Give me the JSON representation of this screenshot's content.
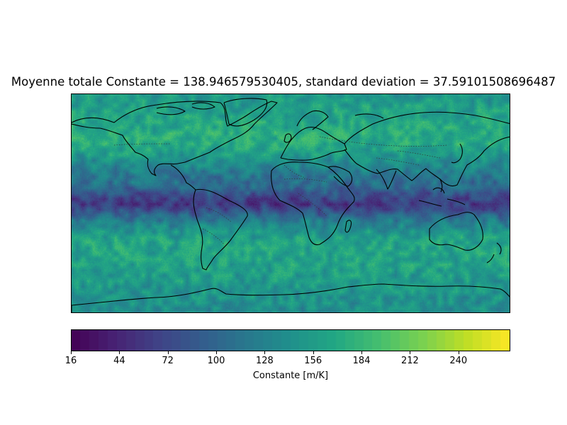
{
  "figure": {
    "title": "Moyenne totale Constante = 138.946579530405, standard deviation = 37.59101508696487",
    "projection": "PlateCarree",
    "features": [
      "coastlines",
      "borders"
    ]
  },
  "colorbar": {
    "label": "Constante [m/K]",
    "colormap": "viridis",
    "vmin": 16,
    "vmax": 270,
    "ticks": [
      "16",
      "44",
      "72",
      "100",
      "128",
      "156",
      "184",
      "212",
      "240"
    ]
  },
  "chart_data": {
    "type": "heatmap",
    "title": "Moyenne totale Constante = 138.946579530405, standard deviation = 37.59101508696487",
    "mean": 138.946579530405,
    "standard_deviation": 37.59101508696487,
    "xlim": [
      -180,
      180
    ],
    "ylim": [
      -90,
      90
    ],
    "zlabel": "Constante [m/K]",
    "zlim": [
      16,
      270
    ],
    "zonal_profile": {
      "lat": [
        90,
        70,
        50,
        30,
        15,
        5,
        0,
        -5,
        -15,
        -30,
        -50,
        -70,
        -90
      ],
      "value": [
        150,
        165,
        175,
        130,
        105,
        70,
        60,
        80,
        130,
        165,
        160,
        150,
        140
      ]
    }
  }
}
